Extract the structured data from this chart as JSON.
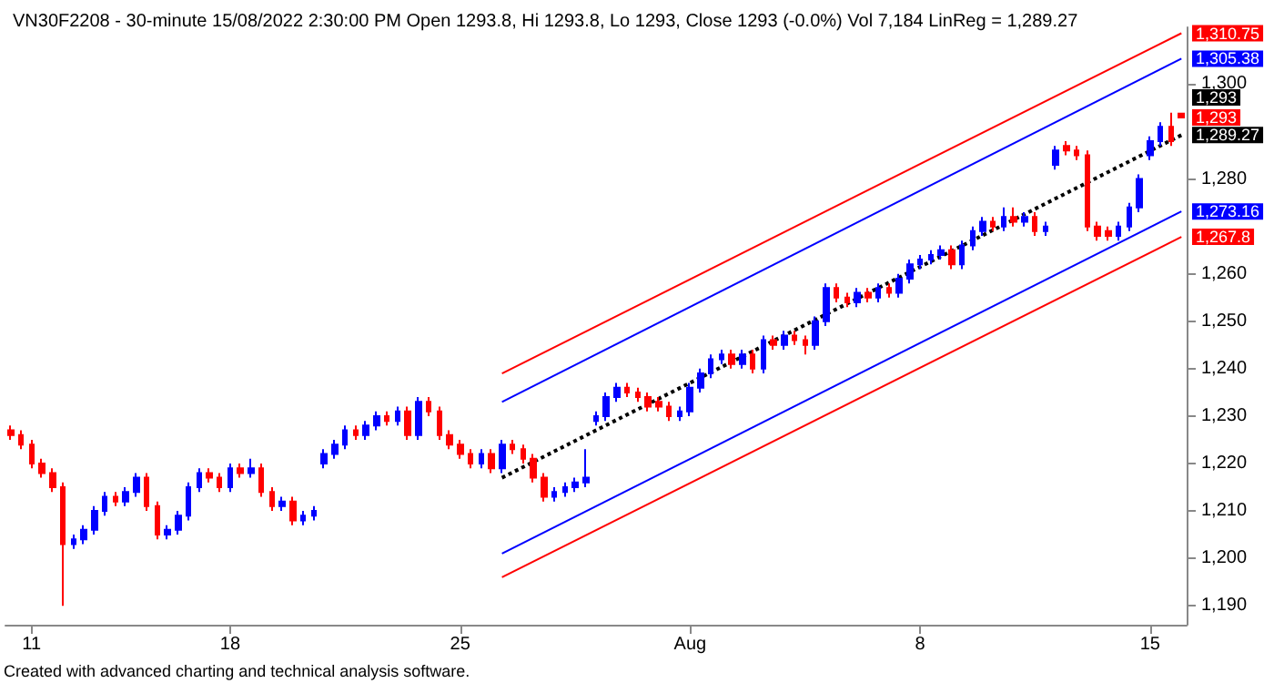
{
  "chart_data": {
    "type": "candlestick",
    "title": "VN30F2208 - 30-minute 15/08/2022 2:30:00 PM Open 1293.8, Hi 1293.8, Lo 1293, Close 1293 (-0.0%) Vol 7,184 LinReg = 1,289.27",
    "annotations": [
      "1,293",
      "Created with advanced charting and technical analysis software."
    ],
    "categories": [
      null,
      null,
      "11",
      null,
      null,
      null,
      null,
      null,
      null,
      null,
      null,
      null,
      null,
      null,
      null,
      null,
      null,
      null,
      null,
      null,
      null,
      "18",
      null,
      null,
      null,
      null,
      null,
      null,
      null,
      null,
      null,
      null,
      null,
      null,
      null,
      null,
      null,
      null,
      null,
      null,
      null,
      null,
      null,
      "25",
      null,
      null,
      null,
      null,
      null,
      null,
      null,
      null,
      null,
      null,
      null,
      null,
      null,
      null,
      null,
      null,
      null,
      null,
      null,
      null,
      null,
      "Aug",
      null,
      null,
      null,
      null,
      null,
      null,
      null,
      null,
      null,
      null,
      null,
      null,
      null,
      null,
      null,
      null,
      null,
      null,
      null,
      null,
      null,
      "8",
      null,
      null,
      null,
      null,
      null,
      null,
      null,
      null,
      null,
      null,
      null,
      null,
      null,
      null,
      null,
      null,
      null,
      null,
      null,
      null,
      null,
      "15",
      null,
      null,
      null
    ],
    "series": [
      {
        "colors": [
          "#ff0000",
          "#ff0000",
          "#ff0000",
          "#ff0000",
          "#ff0000",
          "#ff0000",
          "#0000ff",
          "#0000ff",
          "#0000ff",
          "#0000ff",
          "#ff0000",
          "#0000ff",
          "#0000ff",
          "#ff0000",
          "#ff0000",
          "#0000ff",
          "#0000ff",
          "#0000ff",
          "#0000ff",
          "#ff0000",
          "#ff0000",
          "#0000ff",
          "#ff0000",
          "#0000ff",
          "#ff0000",
          "#ff0000",
          "#0000ff",
          "#ff0000",
          "#0000ff",
          "#0000ff",
          "#0000ff",
          "#0000ff",
          "#0000ff",
          "#ff0000",
          "#0000ff",
          "#0000ff",
          "#ff0000",
          "#0000ff",
          "#ff0000",
          "#0000ff",
          "#ff0000",
          "#ff0000",
          "#ff0000",
          "#ff0000",
          "#ff0000",
          "#0000ff",
          "#ff0000",
          "#0000ff",
          "#ff0000",
          "#ff0000",
          "#ff0000",
          "#ff0000",
          "#0000ff",
          "#0000ff",
          "#0000ff",
          "#0000ff",
          "#0000ff",
          "#0000ff",
          "#0000ff",
          "#ff0000",
          "#ff0000",
          "#ff0000",
          "#ff0000",
          "#ff0000",
          "#0000ff",
          "#0000ff",
          "#0000ff",
          "#0000ff",
          "#0000ff",
          "#ff0000",
          "#0000ff",
          "#ff0000",
          "#0000ff",
          "#ff0000",
          "#0000ff",
          "#ff0000",
          "#ff0000",
          "#0000ff",
          "#0000ff",
          "#ff0000",
          "#ff0000",
          "#0000ff",
          "#ff0000",
          "#0000ff",
          "#ff0000",
          "#0000ff",
          "#0000ff",
          "#0000ff",
          "#0000ff",
          "#0000ff",
          "#ff0000",
          "#0000ff",
          "#0000ff",
          "#0000ff",
          "#ff0000",
          "#0000ff",
          "#ff0000",
          "#0000ff",
          "#ff0000",
          "#0000ff",
          "#0000ff",
          "#ff0000",
          "#ff0000",
          "#ff0000",
          "#ff0000",
          "#ff0000",
          "#0000ff",
          "#0000ff",
          "#0000ff",
          "#0000ff",
          "#0000ff",
          "#ff0000",
          "#ff0000"
        ],
        "value_labels": [
          null,
          null,
          null,
          null,
          null,
          null,
          null,
          null,
          null,
          null,
          null,
          null,
          null,
          null,
          null,
          null,
          null,
          null,
          null,
          null,
          null,
          null,
          null,
          null,
          null,
          null,
          null,
          null,
          null,
          null,
          null,
          null,
          null,
          null,
          null,
          null,
          null,
          null,
          null,
          null,
          null,
          null,
          null,
          null,
          null,
          null,
          null,
          null,
          null,
          null,
          null,
          null,
          null,
          null,
          null,
          null,
          null,
          null,
          null,
          null,
          null,
          null,
          null,
          null,
          null,
          null,
          null,
          null,
          null,
          null,
          null,
          null,
          null,
          null,
          null,
          null,
          null,
          null,
          null,
          null,
          null,
          null,
          null,
          null,
          null,
          null,
          null,
          null,
          null,
          null,
          null,
          null,
          null,
          null,
          null,
          null,
          null,
          null,
          null,
          null,
          null,
          null,
          null,
          null,
          null,
          null,
          null,
          null,
          null,
          null,
          null,
          null,
          "1,293"
        ],
        "ohlc": [
          [
            1227,
            1228,
            1225,
            1226
          ],
          [
            1226,
            1227,
            1223,
            1224
          ],
          [
            1224,
            1225,
            1219,
            1220
          ],
          [
            1220,
            1221,
            1217,
            1218
          ],
          [
            1218,
            1219,
            1214,
            1215
          ],
          [
            1215,
            1216,
            1190,
            1203
          ],
          [
            1203,
            1205,
            1202,
            1204
          ],
          [
            1204,
            1207,
            1203,
            1206
          ],
          [
            1206,
            1211,
            1205,
            1210
          ],
          [
            1210,
            1214,
            1209,
            1213
          ],
          [
            1213,
            1214,
            1211,
            1212
          ],
          [
            1212,
            1215,
            1211,
            1214
          ],
          [
            1214,
            1218,
            1213,
            1217
          ],
          [
            1217,
            1218,
            1210,
            1211
          ],
          [
            1211,
            1212,
            1204,
            1205
          ],
          [
            1205,
            1207,
            1204,
            1206
          ],
          [
            1206,
            1210,
            1205,
            1209
          ],
          [
            1209,
            1216,
            1208,
            1215
          ],
          [
            1215,
            1219,
            1214,
            1218
          ],
          [
            1218,
            1219,
            1216,
            1217
          ],
          [
            1217,
            1218,
            1214,
            1215
          ],
          [
            1215,
            1220,
            1214,
            1219
          ],
          [
            1219,
            1220,
            1217,
            1218
          ],
          [
            1218,
            1221,
            1217,
            1219
          ],
          [
            1219,
            1220,
            1213,
            1214
          ],
          [
            1214,
            1215,
            1210,
            1211
          ],
          [
            1211,
            1213,
            1210,
            1212
          ],
          [
            1212,
            1213,
            1207,
            1208
          ],
          [
            1208,
            1210,
            1207,
            1209
          ],
          [
            1209,
            1211,
            1208,
            1210
          ],
          [
            1220,
            1223,
            1219,
            1222
          ],
          [
            1222,
            1225,
            1221,
            1224
          ],
          [
            1224,
            1228,
            1223,
            1227
          ],
          [
            1227,
            1228,
            1225,
            1226
          ],
          [
            1226,
            1229,
            1225,
            1228
          ],
          [
            1228,
            1231,
            1227,
            1230
          ],
          [
            1230,
            1231,
            1228,
            1229
          ],
          [
            1229,
            1232,
            1228,
            1231
          ],
          [
            1231,
            1232,
            1225,
            1226
          ],
          [
            1226,
            1234,
            1225,
            1233
          ],
          [
            1233,
            1234,
            1230,
            1231
          ],
          [
            1231,
            1232,
            1225,
            1226
          ],
          [
            1226,
            1227,
            1223,
            1224
          ],
          [
            1224,
            1225,
            1221,
            1222
          ],
          [
            1222,
            1223,
            1219,
            1220
          ],
          [
            1220,
            1223,
            1219,
            1222
          ],
          [
            1222,
            1223,
            1218,
            1219
          ],
          [
            1219,
            1225,
            1218,
            1224
          ],
          [
            1224,
            1225,
            1222,
            1223
          ],
          [
            1223,
            1224,
            1220,
            1221
          ],
          [
            1221,
            1222,
            1216,
            1217
          ],
          [
            1217,
            1218,
            1212,
            1213
          ],
          [
            1213,
            1215,
            1212,
            1214
          ],
          [
            1214,
            1216,
            1213,
            1215
          ],
          [
            1215,
            1217,
            1214,
            1216
          ],
          [
            1216,
            1223,
            1215,
            1217
          ],
          [
            1229,
            1231,
            1228,
            1230
          ],
          [
            1230,
            1235,
            1229,
            1234
          ],
          [
            1234,
            1237,
            1233,
            1236
          ],
          [
            1236,
            1237,
            1234,
            1235
          ],
          [
            1235,
            1236,
            1233,
            1234
          ],
          [
            1234,
            1235,
            1231,
            1232
          ],
          [
            1233,
            1234,
            1231,
            1232
          ],
          [
            1232,
            1233,
            1229,
            1230
          ],
          [
            1230,
            1232,
            1229,
            1231
          ],
          [
            1231,
            1237,
            1230,
            1236
          ],
          [
            1236,
            1240,
            1235,
            1239
          ],
          [
            1239,
            1243,
            1238,
            1242
          ],
          [
            1242,
            1244,
            1241,
            1243
          ],
          [
            1243,
            1244,
            1240,
            1241
          ],
          [
            1241,
            1244,
            1240,
            1243
          ],
          [
            1243,
            1244,
            1239,
            1240
          ],
          [
            1240,
            1247,
            1239,
            1246
          ],
          [
            1246,
            1247,
            1244,
            1245
          ],
          [
            1245,
            1248,
            1244,
            1247
          ],
          [
            1247,
            1248,
            1245,
            1246
          ],
          [
            1246,
            1247,
            1243,
            1245
          ],
          [
            1245,
            1251,
            1244,
            1250
          ],
          [
            1250,
            1258,
            1249,
            1257
          ],
          [
            1257,
            1258,
            1254,
            1255
          ],
          [
            1255,
            1256,
            1253,
            1254
          ],
          [
            1254,
            1257,
            1253,
            1256
          ],
          [
            1256,
            1257,
            1254,
            1255
          ],
          [
            1255,
            1258,
            1254,
            1257
          ],
          [
            1257,
            1258,
            1255,
            1256
          ],
          [
            1256,
            1260,
            1255,
            1259
          ],
          [
            1259,
            1263,
            1258,
            1262
          ],
          [
            1262,
            1264,
            1261,
            1263
          ],
          [
            1263,
            1265,
            1262,
            1264
          ],
          [
            1264,
            1266,
            1263,
            1265
          ],
          [
            1265,
            1266,
            1261,
            1262
          ],
          [
            1262,
            1267,
            1261,
            1266
          ],
          [
            1266,
            1270,
            1265,
            1269
          ],
          [
            1269,
            1272,
            1268,
            1271
          ],
          [
            1271,
            1272,
            1269,
            1270
          ],
          [
            1270,
            1274,
            1269,
            1272
          ],
          [
            1272,
            1274,
            1270,
            1271
          ],
          [
            1271,
            1273,
            1270,
            1272
          ],
          [
            1272,
            1273,
            1268,
            1269
          ],
          [
            1269,
            1271,
            1268,
            1270
          ],
          [
            1283,
            1287,
            1282,
            1286
          ],
          [
            1287,
            1288,
            1285,
            1286
          ],
          [
            1286,
            1287,
            1284,
            1285
          ],
          [
            1285,
            1286,
            1269,
            1270
          ],
          [
            1270,
            1271,
            1267,
            1268
          ],
          [
            1269,
            1270,
            1267,
            1268
          ],
          [
            1268,
            1271,
            1267,
            1270
          ],
          [
            1270,
            1275,
            1269,
            1274
          ],
          [
            1274,
            1281,
            1273,
            1280
          ],
          [
            1285,
            1289,
            1284,
            1288
          ],
          [
            1288,
            1292,
            1287,
            1291
          ],
          [
            1291,
            1294,
            1287,
            1288
          ],
          [
            1293.8,
            1293.8,
            1293,
            1293
          ]
        ]
      },
      {
        "type": "line",
        "color": "#ff0000",
        "line_style": "solid",
        "values": [
          null,
          null,
          null,
          null,
          null,
          null,
          null,
          null,
          null,
          null,
          null,
          null,
          null,
          null,
          null,
          null,
          null,
          null,
          null,
          null,
          null,
          null,
          null,
          null,
          null,
          null,
          null,
          null,
          null,
          null,
          null,
          null,
          null,
          null,
          null,
          null,
          null,
          null,
          null,
          null,
          null,
          null,
          null,
          null,
          null,
          null,
          null,
          1239,
          null,
          null,
          null,
          null,
          null,
          null,
          null,
          null,
          null,
          null,
          null,
          null,
          null,
          null,
          null,
          null,
          null,
          null,
          null,
          null,
          null,
          null,
          null,
          null,
          null,
          null,
          null,
          null,
          null,
          null,
          null,
          null,
          null,
          null,
          null,
          null,
          null,
          null,
          null,
          null,
          null,
          null,
          null,
          null,
          null,
          null,
          null,
          null,
          null,
          null,
          null,
          null,
          null,
          null,
          null,
          null,
          null,
          null,
          null,
          null,
          null,
          null,
          null,
          null,
          1310.75
        ],
        "value_labels": [
          null,
          null,
          null,
          null,
          null,
          null,
          null,
          null,
          null,
          null,
          null,
          null,
          null,
          null,
          null,
          null,
          null,
          null,
          null,
          null,
          null,
          null,
          null,
          null,
          null,
          null,
          null,
          null,
          null,
          null,
          null,
          null,
          null,
          null,
          null,
          null,
          null,
          null,
          null,
          null,
          null,
          null,
          null,
          null,
          null,
          null,
          null,
          null,
          null,
          null,
          null,
          null,
          null,
          null,
          null,
          null,
          null,
          null,
          null,
          null,
          null,
          null,
          null,
          null,
          null,
          null,
          null,
          null,
          null,
          null,
          null,
          null,
          null,
          null,
          null,
          null,
          null,
          null,
          null,
          null,
          null,
          null,
          null,
          null,
          null,
          null,
          null,
          null,
          null,
          null,
          null,
          null,
          null,
          null,
          null,
          null,
          null,
          null,
          null,
          null,
          null,
          null,
          null,
          null,
          null,
          null,
          null,
          null,
          null,
          null,
          null,
          null,
          "1,310.75"
        ]
      },
      {
        "type": "line",
        "color": "#0000ff",
        "line_style": "solid",
        "values": [
          null,
          null,
          null,
          null,
          null,
          null,
          null,
          null,
          null,
          null,
          null,
          null,
          null,
          null,
          null,
          null,
          null,
          null,
          null,
          null,
          null,
          null,
          null,
          null,
          null,
          null,
          null,
          null,
          null,
          null,
          null,
          null,
          null,
          null,
          null,
          null,
          null,
          null,
          null,
          null,
          null,
          null,
          null,
          null,
          null,
          null,
          null,
          1233,
          null,
          null,
          null,
          null,
          null,
          null,
          null,
          null,
          null,
          null,
          null,
          null,
          null,
          null,
          null,
          null,
          null,
          null,
          null,
          null,
          null,
          null,
          null,
          null,
          null,
          null,
          null,
          null,
          null,
          null,
          null,
          null,
          null,
          null,
          null,
          null,
          null,
          null,
          null,
          null,
          null,
          null,
          null,
          null,
          null,
          null,
          null,
          null,
          null,
          null,
          null,
          null,
          null,
          null,
          null,
          null,
          null,
          null,
          null,
          null,
          null,
          null,
          null,
          null,
          1305.38
        ],
        "value_labels": [
          null,
          null,
          null,
          null,
          null,
          null,
          null,
          null,
          null,
          null,
          null,
          null,
          null,
          null,
          null,
          null,
          null,
          null,
          null,
          null,
          null,
          null,
          null,
          null,
          null,
          null,
          null,
          null,
          null,
          null,
          null,
          null,
          null,
          null,
          null,
          null,
          null,
          null,
          null,
          null,
          null,
          null,
          null,
          null,
          null,
          null,
          null,
          null,
          null,
          null,
          null,
          null,
          null,
          null,
          null,
          null,
          null,
          null,
          null,
          null,
          null,
          null,
          null,
          null,
          null,
          null,
          null,
          null,
          null,
          null,
          null,
          null,
          null,
          null,
          null,
          null,
          null,
          null,
          null,
          null,
          null,
          null,
          null,
          null,
          null,
          null,
          null,
          null,
          null,
          null,
          null,
          null,
          null,
          null,
          null,
          null,
          null,
          null,
          null,
          null,
          null,
          null,
          null,
          null,
          null,
          null,
          null,
          null,
          null,
          null,
          null,
          null,
          "1,305.38"
        ]
      },
      {
        "type": "line",
        "color": "#000000",
        "line_style": "dotted",
        "values": [
          null,
          null,
          null,
          null,
          null,
          null,
          null,
          null,
          null,
          null,
          null,
          null,
          null,
          null,
          null,
          null,
          null,
          null,
          null,
          null,
          null,
          null,
          null,
          null,
          null,
          null,
          null,
          null,
          null,
          null,
          null,
          null,
          null,
          null,
          null,
          null,
          null,
          null,
          null,
          null,
          null,
          null,
          null,
          null,
          null,
          null,
          null,
          1217,
          null,
          null,
          null,
          null,
          null,
          null,
          null,
          null,
          null,
          null,
          null,
          null,
          null,
          null,
          null,
          null,
          null,
          null,
          null,
          null,
          null,
          null,
          null,
          null,
          null,
          null,
          null,
          null,
          null,
          null,
          null,
          null,
          null,
          null,
          null,
          null,
          null,
          null,
          null,
          null,
          null,
          null,
          null,
          null,
          null,
          null,
          null,
          null,
          null,
          null,
          null,
          null,
          null,
          null,
          null,
          null,
          null,
          null,
          null,
          null,
          null,
          null,
          null,
          null,
          1289.27
        ],
        "value_labels": [
          null,
          null,
          null,
          null,
          null,
          null,
          null,
          null,
          null,
          null,
          null,
          null,
          null,
          null,
          null,
          null,
          null,
          null,
          null,
          null,
          null,
          null,
          null,
          null,
          null,
          null,
          null,
          null,
          null,
          null,
          null,
          null,
          null,
          null,
          null,
          null,
          null,
          null,
          null,
          null,
          null,
          null,
          null,
          null,
          null,
          null,
          null,
          null,
          null,
          null,
          null,
          null,
          null,
          null,
          null,
          null,
          null,
          null,
          null,
          null,
          null,
          null,
          null,
          null,
          null,
          null,
          null,
          null,
          null,
          null,
          null,
          null,
          null,
          null,
          null,
          null,
          null,
          null,
          null,
          null,
          null,
          null,
          null,
          null,
          null,
          null,
          null,
          null,
          null,
          null,
          null,
          null,
          null,
          null,
          null,
          null,
          null,
          null,
          null,
          null,
          null,
          null,
          null,
          null,
          null,
          null,
          null,
          null,
          null,
          null,
          null,
          null,
          "1,289.27"
        ]
      },
      {
        "type": "line",
        "color": "#0000ff",
        "line_style": "solid",
        "values": [
          null,
          null,
          null,
          null,
          null,
          null,
          null,
          null,
          null,
          null,
          null,
          null,
          null,
          null,
          null,
          null,
          null,
          null,
          null,
          null,
          null,
          null,
          null,
          null,
          null,
          null,
          null,
          null,
          null,
          null,
          null,
          null,
          null,
          null,
          null,
          null,
          null,
          null,
          null,
          null,
          null,
          null,
          null,
          null,
          null,
          null,
          null,
          1201,
          null,
          null,
          null,
          null,
          null,
          null,
          null,
          null,
          null,
          null,
          null,
          null,
          null,
          null,
          null,
          null,
          null,
          null,
          null,
          null,
          null,
          null,
          null,
          null,
          null,
          null,
          null,
          null,
          null,
          null,
          null,
          null,
          null,
          null,
          null,
          null,
          null,
          null,
          null,
          null,
          null,
          null,
          null,
          null,
          null,
          null,
          null,
          null,
          null,
          null,
          null,
          null,
          null,
          null,
          null,
          null,
          null,
          null,
          null,
          null,
          null,
          null,
          null,
          null,
          1273.16
        ],
        "value_labels": [
          null,
          null,
          null,
          null,
          null,
          null,
          null,
          null,
          null,
          null,
          null,
          null,
          null,
          null,
          null,
          null,
          null,
          null,
          null,
          null,
          null,
          null,
          null,
          null,
          null,
          null,
          null,
          null,
          null,
          null,
          null,
          null,
          null,
          null,
          null,
          null,
          null,
          null,
          null,
          null,
          null,
          null,
          null,
          null,
          null,
          null,
          null,
          null,
          null,
          null,
          null,
          null,
          null,
          null,
          null,
          null,
          null,
          null,
          null,
          null,
          null,
          null,
          null,
          null,
          null,
          null,
          null,
          null,
          null,
          null,
          null,
          null,
          null,
          null,
          null,
          null,
          null,
          null,
          null,
          null,
          null,
          null,
          null,
          null,
          null,
          null,
          null,
          null,
          null,
          null,
          null,
          null,
          null,
          null,
          null,
          null,
          null,
          null,
          null,
          null,
          null,
          null,
          null,
          null,
          null,
          null,
          null,
          null,
          null,
          null,
          null,
          null,
          "1,273.16"
        ]
      },
      {
        "type": "line",
        "color": "#ff0000",
        "line_style": "solid",
        "values": [
          null,
          null,
          null,
          null,
          null,
          null,
          null,
          null,
          null,
          null,
          null,
          null,
          null,
          null,
          null,
          null,
          null,
          null,
          null,
          null,
          null,
          null,
          null,
          null,
          null,
          null,
          null,
          null,
          null,
          null,
          null,
          null,
          null,
          null,
          null,
          null,
          null,
          null,
          null,
          null,
          null,
          null,
          null,
          null,
          null,
          null,
          null,
          1196,
          null,
          null,
          null,
          null,
          null,
          null,
          null,
          null,
          null,
          null,
          null,
          null,
          null,
          null,
          null,
          null,
          null,
          null,
          null,
          null,
          null,
          null,
          null,
          null,
          null,
          null,
          null,
          null,
          null,
          null,
          null,
          null,
          null,
          null,
          null,
          null,
          null,
          null,
          null,
          null,
          null,
          null,
          null,
          null,
          null,
          null,
          null,
          null,
          null,
          null,
          null,
          null,
          null,
          null,
          null,
          null,
          null,
          null,
          null,
          null,
          null,
          null,
          null,
          null,
          1267.8
        ],
        "value_labels": [
          null,
          null,
          null,
          null,
          null,
          null,
          null,
          null,
          null,
          null,
          null,
          null,
          null,
          null,
          null,
          null,
          null,
          null,
          null,
          null,
          null,
          null,
          null,
          null,
          null,
          null,
          null,
          null,
          null,
          null,
          null,
          null,
          null,
          null,
          null,
          null,
          null,
          null,
          null,
          null,
          null,
          null,
          null,
          null,
          null,
          null,
          null,
          null,
          null,
          null,
          null,
          null,
          null,
          null,
          null,
          null,
          null,
          null,
          null,
          null,
          null,
          null,
          null,
          null,
          null,
          null,
          null,
          null,
          null,
          null,
          null,
          null,
          null,
          null,
          null,
          null,
          null,
          null,
          null,
          null,
          null,
          null,
          null,
          null,
          null,
          null,
          null,
          null,
          null,
          null,
          null,
          null,
          null,
          null,
          null,
          null,
          null,
          null,
          null,
          null,
          null,
          null,
          null,
          null,
          null,
          null,
          null,
          null,
          null,
          null,
          null,
          null,
          "1,267.8"
        ]
      }
    ],
    "ylim": [
      1186,
      1312
    ],
    "yticks": [
      {
        "value": 1190,
        "label": "1,190"
      },
      {
        "value": 1200,
        "label": "1,200"
      },
      {
        "value": 1210,
        "label": "1,210"
      },
      {
        "value": 1220,
        "label": "1,220"
      },
      {
        "value": 1230,
        "label": "1,230"
      },
      {
        "value": 1240,
        "label": "1,240"
      },
      {
        "value": 1250,
        "label": "1,250"
      },
      {
        "value": 1260,
        "label": "1,260"
      },
      {
        "value": 1280,
        "label": "1,280"
      },
      {
        "value": 1300,
        "label": "1,300"
      }
    ],
    "grid": false,
    "marker": "none"
  }
}
